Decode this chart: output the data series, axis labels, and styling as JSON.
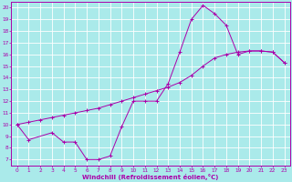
{
  "xlabel": "Windchill (Refroidissement éolien,°C)",
  "bg_color": "#aaeaea",
  "line_color": "#aa00aa",
  "xlim": [
    -0.5,
    23.5
  ],
  "ylim": [
    6.5,
    20.5
  ],
  "xticks": [
    0,
    1,
    2,
    3,
    4,
    5,
    6,
    7,
    8,
    9,
    10,
    11,
    12,
    13,
    14,
    15,
    16,
    17,
    18,
    19,
    20,
    21,
    22,
    23
  ],
  "yticks": [
    7,
    8,
    9,
    10,
    11,
    12,
    13,
    14,
    15,
    16,
    17,
    18,
    19,
    20
  ],
  "line1_x": [
    0,
    1,
    3,
    4,
    5,
    6,
    7,
    8,
    9,
    10,
    11,
    12,
    13,
    14,
    15,
    16,
    17,
    18,
    19,
    20,
    21,
    22,
    23
  ],
  "line1_y": [
    10,
    8.7,
    9.3,
    8.5,
    8.5,
    7.0,
    7.0,
    7.3,
    9.8,
    12.0,
    12.0,
    12.0,
    13.5,
    16.2,
    19.0,
    20.2,
    19.5,
    18.5,
    16.0,
    16.3,
    16.3,
    16.2,
    15.3
  ],
  "line2_x": [
    0,
    1,
    2,
    3,
    4,
    5,
    6,
    7,
    8,
    9,
    10,
    11,
    12,
    13,
    14,
    15,
    16,
    17,
    18,
    19,
    20,
    21,
    22,
    23
  ],
  "line2_y": [
    10.0,
    10.2,
    10.4,
    10.6,
    10.8,
    11.0,
    11.2,
    11.4,
    11.7,
    12.0,
    12.3,
    12.6,
    12.9,
    13.2,
    13.6,
    14.2,
    15.0,
    15.7,
    16.0,
    16.2,
    16.3,
    16.3,
    16.2,
    15.3
  ],
  "grid_color": "#ffffff",
  "marker": "+"
}
